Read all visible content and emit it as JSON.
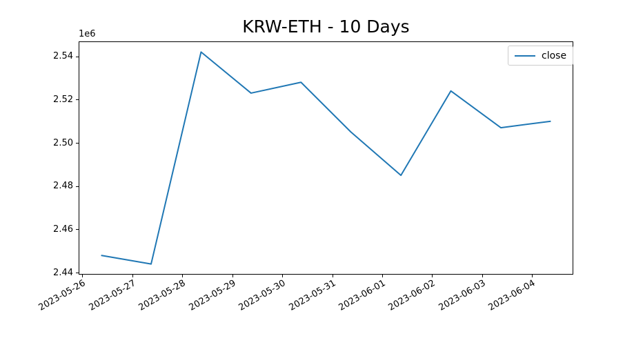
{
  "figure": {
    "background": "#ffffff",
    "spine_color": "#000000",
    "tick_color": "#000000"
  },
  "chart_data": {
    "type": "line",
    "title": "KRW-ETH - 10 Days",
    "xlabel": "",
    "ylabel": "",
    "offset_text": "1e6",
    "grid": false,
    "categories": [
      "2023-05-26",
      "2023-05-27",
      "2023-05-28",
      "2023-05-29",
      "2023-05-30",
      "2023-05-31",
      "2023-06-01",
      "2023-06-02",
      "2023-06-03",
      "2023-06-04"
    ],
    "series": [
      {
        "name": "close",
        "color": "#1f77b4",
        "values": [
          2448000,
          2444000,
          2542000,
          2523000,
          2528000,
          2505000,
          2485000,
          2524000,
          2507000,
          2510000
        ]
      }
    ],
    "x_positions": [
      0.375,
      1.375,
      2.375,
      3.375,
      4.375,
      5.375,
      6.375,
      7.375,
      8.375,
      9.375
    ],
    "x_tick_positions": [
      0,
      1,
      2,
      3,
      4,
      5,
      6,
      7,
      8,
      9
    ],
    "x_tick_rotation_deg": 30,
    "xlim": [
      -0.075,
      9.825
    ],
    "ylim": [
      2439100,
      2546900
    ],
    "y_ticks": [
      2440000,
      2460000,
      2480000,
      2500000,
      2520000,
      2540000
    ],
    "y_tick_labels": [
      "2.44",
      "2.46",
      "2.48",
      "2.50",
      "2.52",
      "2.54"
    ],
    "legend": {
      "label": "close",
      "position": "upper right"
    }
  }
}
